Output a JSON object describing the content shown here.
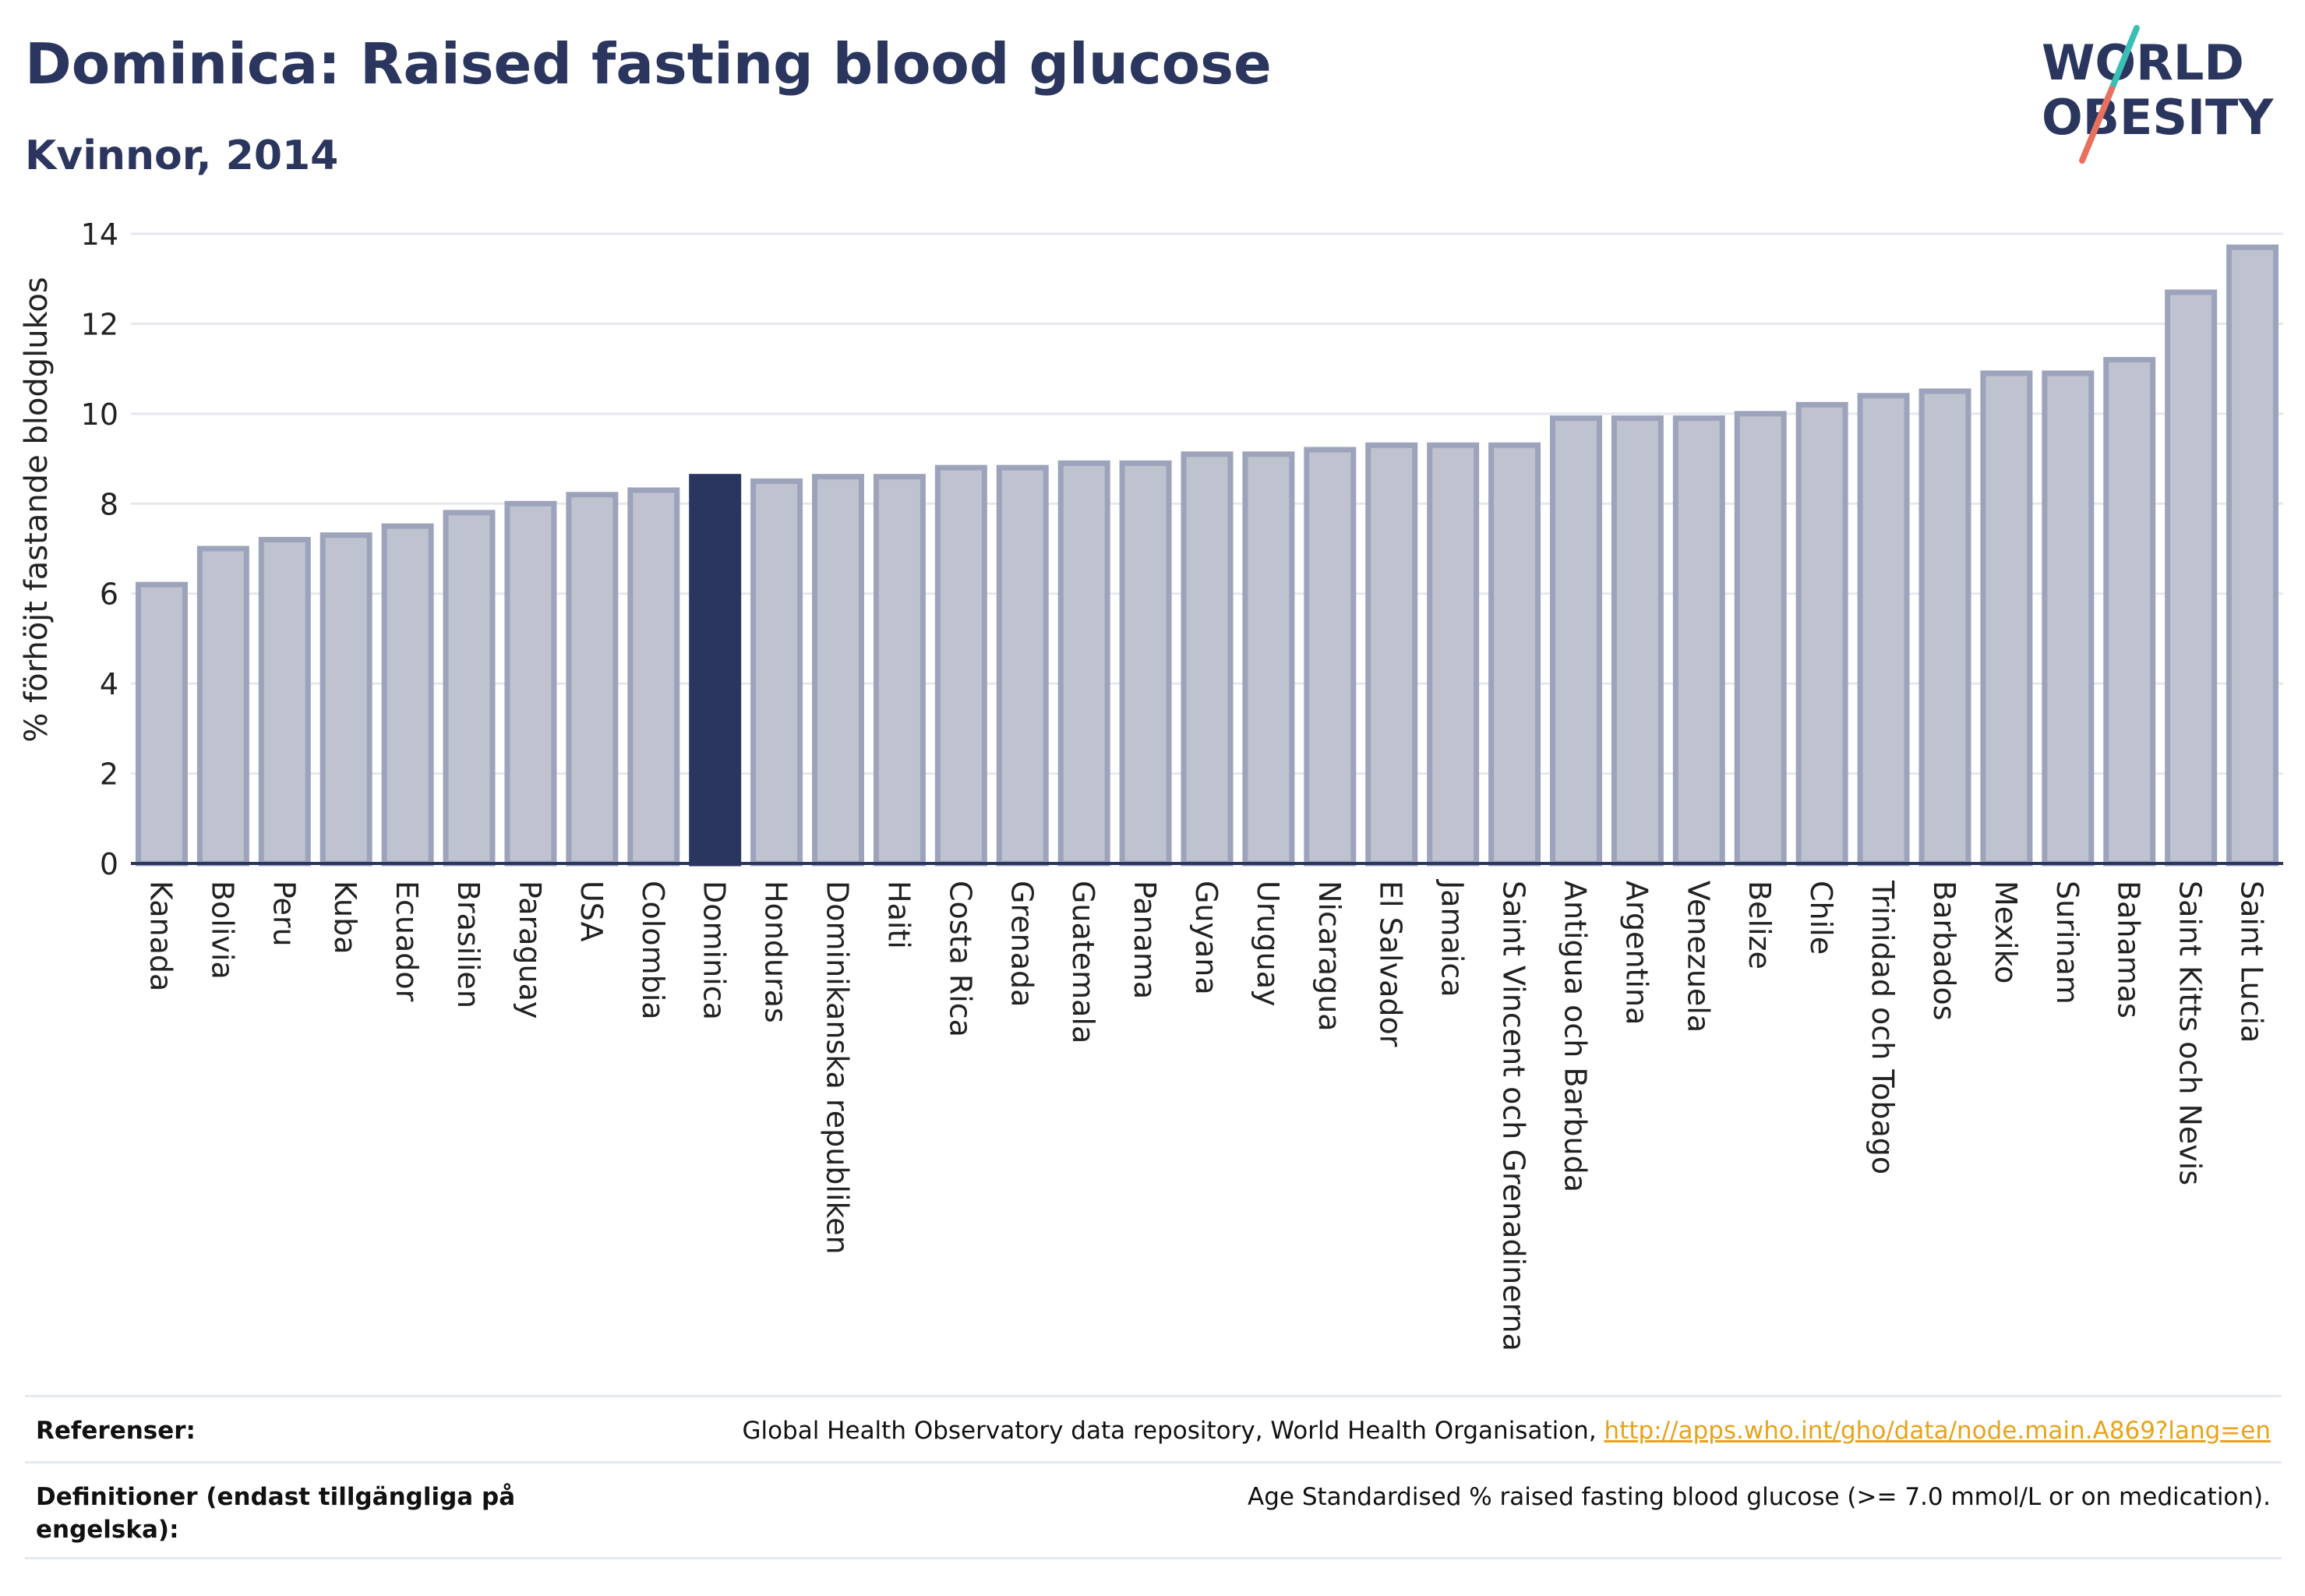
{
  "header": {
    "title": "Dominica: Raised fasting blood glucose",
    "subtitle": "Kvinnor, 2014"
  },
  "logo": {
    "line1": "WORLD",
    "line2": "OBESITY",
    "colors": {
      "text": "#2b365f",
      "slash_top": "#3bbfb4",
      "slash_bottom": "#e8715e"
    }
  },
  "colors": {
    "bar_fill": "#bfc2cf",
    "bar_stroke": "#9da3bb",
    "highlight": "#2b365f",
    "grid": "#e6e8ee",
    "axis": "#2b365f"
  },
  "chart_data": {
    "type": "bar",
    "ylabel": "% förhöjt fastande blodglukos",
    "ylim": [
      0,
      14
    ],
    "yticks": [
      0,
      2,
      4,
      6,
      8,
      10,
      12,
      14
    ],
    "grid": true,
    "highlight": "Dominica",
    "categories": [
      "Kanada",
      "Bolivia",
      "Peru",
      "Kuba",
      "Ecuador",
      "Brasilien",
      "Paraguay",
      "USA",
      "Colombia",
      "Dominica",
      "Honduras",
      "Dominikanska republiken",
      "Haiti",
      "Costa Rica",
      "Grenada",
      "Guatemala",
      "Panama",
      "Guyana",
      "Uruguay",
      "Nicaragua",
      "El Salvador",
      "Jamaica",
      "Saint Vincent och Grenadinerna",
      "Antigua och Barbuda",
      "Argentina",
      "Venezuela",
      "Belize",
      "Chile",
      "Trinidad och Tobago",
      "Barbados",
      "Mexiko",
      "Surinam",
      "Bahamas",
      "Saint Kitts och Nevis",
      "Saint Lucia"
    ],
    "values": [
      6.2,
      7.0,
      7.2,
      7.3,
      7.5,
      7.8,
      8.0,
      8.2,
      8.3,
      8.6,
      8.5,
      8.6,
      8.6,
      8.8,
      8.8,
      8.9,
      8.9,
      9.1,
      9.1,
      9.2,
      9.3,
      9.3,
      9.3,
      9.9,
      9.9,
      9.9,
      10.0,
      10.2,
      10.4,
      10.5,
      10.9,
      10.9,
      11.2,
      12.7,
      13.7
    ]
  },
  "footer": {
    "references_label": "Referenser:",
    "references_text": "Global Health Observatory data repository, World Health Organisation, ",
    "references_link": "http://apps.who.int/gho/data/node.main.A869?lang=en",
    "definitions_label": "Definitioner (endast tillgängliga på engelska):",
    "definitions_text": "Age Standardised % raised fasting blood glucose (>= 7.0 mmol/L or on medication)."
  }
}
